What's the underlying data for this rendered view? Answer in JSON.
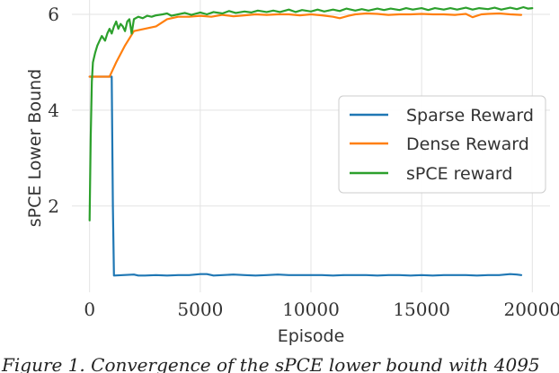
{
  "chart_data": {
    "type": "line",
    "xlabel": "Episode",
    "ylabel": "sPCE Lower Bound",
    "xlim": [
      -800,
      20800
    ],
    "ylim": [
      0.2,
      6.3
    ],
    "x_ticks": [
      0,
      5000,
      10000,
      15000,
      20000
    ],
    "y_ticks": [
      2,
      4,
      6
    ],
    "grid": true,
    "legend_position": "center-right",
    "series": [
      {
        "name": "Sparse Reward",
        "color": "#1f77b4",
        "points": [
          [
            0,
            4.7
          ],
          [
            300,
            4.7
          ],
          [
            600,
            4.7
          ],
          [
            950,
            4.7
          ],
          [
            1000,
            4.7
          ],
          [
            1050,
            2.0
          ],
          [
            1100,
            0.55
          ],
          [
            1500,
            0.56
          ],
          [
            2000,
            0.57
          ],
          [
            2200,
            0.55
          ],
          [
            2500,
            0.55
          ],
          [
            3000,
            0.56
          ],
          [
            3500,
            0.55
          ],
          [
            4000,
            0.56
          ],
          [
            4500,
            0.56
          ],
          [
            5000,
            0.58
          ],
          [
            5300,
            0.58
          ],
          [
            5600,
            0.55
          ],
          [
            6000,
            0.56
          ],
          [
            6500,
            0.57
          ],
          [
            7000,
            0.56
          ],
          [
            7500,
            0.55
          ],
          [
            8000,
            0.56
          ],
          [
            8500,
            0.57
          ],
          [
            9000,
            0.56
          ],
          [
            9500,
            0.56
          ],
          [
            10000,
            0.56
          ],
          [
            10500,
            0.56
          ],
          [
            11000,
            0.55
          ],
          [
            11500,
            0.56
          ],
          [
            12000,
            0.56
          ],
          [
            12500,
            0.56
          ],
          [
            13000,
            0.55
          ],
          [
            13500,
            0.56
          ],
          [
            14000,
            0.56
          ],
          [
            14500,
            0.55
          ],
          [
            15000,
            0.56
          ],
          [
            15500,
            0.55
          ],
          [
            16000,
            0.56
          ],
          [
            16500,
            0.56
          ],
          [
            17000,
            0.56
          ],
          [
            17500,
            0.55
          ],
          [
            18000,
            0.56
          ],
          [
            18500,
            0.56
          ],
          [
            19000,
            0.58
          ],
          [
            19300,
            0.57
          ],
          [
            19500,
            0.56
          ]
        ]
      },
      {
        "name": "Dense Reward",
        "color": "#ff7f0e",
        "points": [
          [
            0,
            4.7
          ],
          [
            500,
            4.7
          ],
          [
            900,
            4.7
          ],
          [
            1200,
            5.0
          ],
          [
            1600,
            5.35
          ],
          [
            2000,
            5.65
          ],
          [
            2500,
            5.7
          ],
          [
            3000,
            5.75
          ],
          [
            3500,
            5.9
          ],
          [
            4000,
            5.95
          ],
          [
            4500,
            5.95
          ],
          [
            5000,
            5.97
          ],
          [
            5500,
            5.95
          ],
          [
            6000,
            5.99
          ],
          [
            6500,
            5.96
          ],
          [
            7000,
            5.98
          ],
          [
            7500,
            6.0
          ],
          [
            8000,
            5.99
          ],
          [
            8500,
            6.0
          ],
          [
            9000,
            6.0
          ],
          [
            9500,
            5.98
          ],
          [
            10000,
            6.0
          ],
          [
            10500,
            5.98
          ],
          [
            11000,
            5.95
          ],
          [
            11300,
            5.92
          ],
          [
            11700,
            5.97
          ],
          [
            12000,
            6.0
          ],
          [
            12500,
            6.02
          ],
          [
            13000,
            6.01
          ],
          [
            13500,
            5.99
          ],
          [
            14000,
            6.0
          ],
          [
            14500,
            6.0
          ],
          [
            15000,
            6.01
          ],
          [
            15500,
            6.0
          ],
          [
            16000,
            6.0
          ],
          [
            16500,
            5.99
          ],
          [
            17000,
            6.01
          ],
          [
            17300,
            5.94
          ],
          [
            17700,
            6.0
          ],
          [
            18000,
            6.01
          ],
          [
            18500,
            6.02
          ],
          [
            19000,
            6.0
          ],
          [
            19500,
            5.99
          ]
        ]
      },
      {
        "name": "sPCE reward",
        "color": "#2ca02c",
        "points": [
          [
            0,
            1.7
          ],
          [
            50,
            3.4
          ],
          [
            100,
            4.6
          ],
          [
            150,
            5.0
          ],
          [
            250,
            5.2
          ],
          [
            350,
            5.35
          ],
          [
            450,
            5.45
          ],
          [
            550,
            5.55
          ],
          [
            700,
            5.45
          ],
          [
            800,
            5.6
          ],
          [
            900,
            5.7
          ],
          [
            1000,
            5.6
          ],
          [
            1100,
            5.75
          ],
          [
            1200,
            5.85
          ],
          [
            1300,
            5.7
          ],
          [
            1400,
            5.8
          ],
          [
            1500,
            5.75
          ],
          [
            1600,
            5.65
          ],
          [
            1700,
            5.85
          ],
          [
            1800,
            5.9
          ],
          [
            1900,
            5.6
          ],
          [
            2000,
            5.9
          ],
          [
            2200,
            5.95
          ],
          [
            2400,
            5.92
          ],
          [
            2600,
            5.97
          ],
          [
            2800,
            5.95
          ],
          [
            3000,
            5.98
          ],
          [
            3300,
            6.0
          ],
          [
            3500,
            6.02
          ],
          [
            3700,
            5.97
          ],
          [
            4000,
            6.0
          ],
          [
            4300,
            6.03
          ],
          [
            4600,
            5.99
          ],
          [
            5000,
            6.04
          ],
          [
            5300,
            6.0
          ],
          [
            5600,
            6.05
          ],
          [
            6000,
            6.02
          ],
          [
            6300,
            6.07
          ],
          [
            6600,
            6.03
          ],
          [
            7000,
            6.06
          ],
          [
            7300,
            6.04
          ],
          [
            7600,
            6.08
          ],
          [
            8000,
            6.05
          ],
          [
            8300,
            6.08
          ],
          [
            8600,
            6.05
          ],
          [
            9000,
            6.1
          ],
          [
            9300,
            6.05
          ],
          [
            9600,
            6.09
          ],
          [
            10000,
            6.06
          ],
          [
            10300,
            6.1
          ],
          [
            10600,
            6.06
          ],
          [
            11000,
            6.1
          ],
          [
            11300,
            6.07
          ],
          [
            11600,
            6.12
          ],
          [
            12000,
            6.08
          ],
          [
            12300,
            6.11
          ],
          [
            12600,
            6.08
          ],
          [
            13000,
            6.12
          ],
          [
            13300,
            6.09
          ],
          [
            13600,
            6.12
          ],
          [
            14000,
            6.09
          ],
          [
            14300,
            6.13
          ],
          [
            14600,
            6.1
          ],
          [
            15000,
            6.13
          ],
          [
            15300,
            6.09
          ],
          [
            15600,
            6.13
          ],
          [
            16000,
            6.1
          ],
          [
            16300,
            6.13
          ],
          [
            16600,
            6.1
          ],
          [
            17000,
            6.14
          ],
          [
            17300,
            6.1
          ],
          [
            17600,
            6.13
          ],
          [
            18000,
            6.11
          ],
          [
            18300,
            6.14
          ],
          [
            18600,
            6.1
          ],
          [
            19000,
            6.14
          ],
          [
            19300,
            6.11
          ],
          [
            19600,
            6.15
          ],
          [
            19800,
            6.12
          ],
          [
            20000,
            6.13
          ]
        ]
      }
    ]
  },
  "caption_text": "Figure 1. Convergence of the sPCE lower bound with 4095"
}
